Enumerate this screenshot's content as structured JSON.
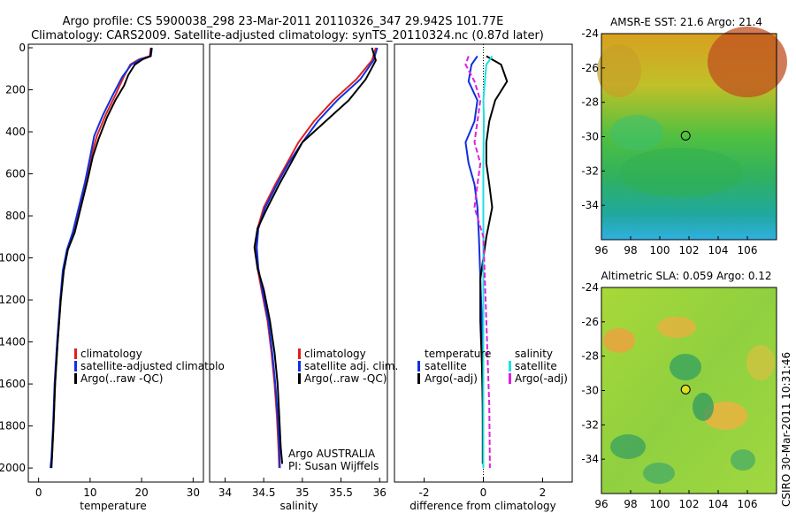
{
  "header": {
    "line1": "Argo profile: CS 5900038_298 23-Mar-2011 20110326_347 29.942S 101.77E",
    "line2": "Climatology: CARS2009. Satellite-adjusted climatology: synTS_20110324.nc (0.87d later)"
  },
  "colors": {
    "climatology": "#e02020",
    "satellite": "#1030e0",
    "argo": "#000000",
    "salt_sat": "#20e0e0",
    "salt_argo": "#e020e0"
  },
  "depth_axis": {
    "ylim": [
      0,
      2050
    ],
    "ticks": [
      0,
      200,
      400,
      600,
      800,
      1000,
      1200,
      1400,
      1600,
      1800,
      2000
    ]
  },
  "chart_data": [
    {
      "type": "line",
      "title": "",
      "xlabel": "temperature",
      "ylabel": "",
      "xlim": [
        -2,
        32
      ],
      "xticks": [
        0,
        10,
        20,
        30
      ],
      "series": [
        {
          "name": "climatology",
          "key": "climatology",
          "x": [
            21.8,
            21.6,
            19.5,
            17.8,
            16.5,
            15.0,
            13.0,
            11.3,
            10.2,
            9.2,
            8.0,
            6.8,
            5.6,
            4.8,
            4.3,
            3.7,
            3.2,
            2.9,
            2.6,
            2.4
          ],
          "y": [
            0,
            40,
            55,
            80,
            140,
            220,
            320,
            420,
            520,
            640,
            760,
            880,
            960,
            1060,
            1200,
            1400,
            1600,
            1800,
            1950,
            2000
          ]
        },
        {
          "name": "satellite-adjusted climatology",
          "key": "satellite",
          "x": [
            22.0,
            21.8,
            19.8,
            18.0,
            16.2,
            14.5,
            12.5,
            10.8,
            10.0,
            9.0,
            7.8,
            6.6,
            5.5,
            4.7,
            4.2,
            3.6,
            3.1,
            2.8,
            2.5,
            2.3
          ],
          "y": [
            0,
            40,
            55,
            80,
            140,
            220,
            320,
            420,
            520,
            640,
            760,
            880,
            960,
            1060,
            1200,
            1400,
            1600,
            1800,
            1950,
            2000
          ]
        },
        {
          "name": "Argo(..raw -QC)",
          "key": "argo",
          "x": [
            21.9,
            21.7,
            20.2,
            18.7,
            17.4,
            16.6,
            14.9,
            13.3,
            11.7,
            10.5,
            9.5,
            8.2,
            7.0,
            5.7,
            4.9,
            4.3,
            3.7,
            3.2,
            2.9,
            2.5
          ],
          "y": [
            0,
            40,
            55,
            80,
            130,
            180,
            250,
            330,
            430,
            520,
            630,
            760,
            880,
            960,
            1060,
            1200,
            1400,
            1600,
            1800,
            2000
          ]
        }
      ],
      "legend": {
        "position": "center-right",
        "entries": [
          "climatology",
          "satellite-adjusted climatolo",
          "Argo(..raw -QC)"
        ]
      }
    },
    {
      "type": "line",
      "title": "",
      "xlabel": "salinity",
      "ylabel": "",
      "xlim": [
        33.8,
        36.1
      ],
      "xticks": [
        34,
        34.5,
        35,
        35.5,
        36
      ],
      "series": [
        {
          "name": "climatology",
          "key": "climatology",
          "x": [
            35.95,
            35.9,
            35.7,
            35.4,
            35.15,
            34.95,
            34.8,
            34.65,
            34.5,
            34.42,
            34.4,
            34.42,
            34.47,
            34.55,
            34.6,
            34.64,
            34.67,
            34.69,
            34.7
          ],
          "y": [
            0,
            60,
            150,
            250,
            350,
            450,
            550,
            650,
            760,
            860,
            950,
            1050,
            1150,
            1300,
            1450,
            1600,
            1750,
            1900,
            2000
          ]
        },
        {
          "name": "satellite adj. clim.",
          "key": "satellite",
          "x": [
            35.97,
            35.92,
            35.75,
            35.45,
            35.2,
            35.0,
            34.82,
            34.67,
            34.52,
            34.43,
            34.41,
            34.43,
            34.48,
            34.56,
            34.61,
            34.65,
            34.68,
            34.7,
            34.71
          ],
          "y": [
            0,
            60,
            150,
            250,
            350,
            450,
            550,
            650,
            760,
            860,
            950,
            1050,
            1150,
            1300,
            1450,
            1600,
            1750,
            1900,
            2000
          ]
        },
        {
          "name": "Argo(..raw -QC)",
          "key": "argo",
          "x": [
            35.9,
            35.95,
            35.82,
            35.6,
            35.3,
            35.0,
            34.85,
            34.7,
            34.55,
            34.42,
            34.38,
            34.42,
            34.5,
            34.58,
            34.64,
            34.68,
            34.7,
            34.72,
            34.74
          ],
          "y": [
            0,
            60,
            150,
            250,
            350,
            450,
            550,
            650,
            760,
            860,
            950,
            1050,
            1150,
            1300,
            1450,
            1600,
            1750,
            1900,
            1980
          ]
        }
      ],
      "legend": {
        "position": "center-right",
        "entries": [
          "climatology",
          "satellite adj. clim.",
          "Argo(..raw -QC)"
        ]
      },
      "annotation": [
        "Argo AUSTRALIA",
        "PI: Susan Wijffels"
      ]
    },
    {
      "type": "line",
      "title": "",
      "xlabel": "difference from climatology",
      "ylabel": "",
      "xlim": [
        -3,
        3
      ],
      "xticks": [
        -2,
        0,
        2
      ],
      "series": [
        {
          "name": "temperature satellite",
          "key": "satellite",
          "x": [
            -0.2,
            -0.4,
            -0.5,
            -0.2,
            -0.3,
            -0.6,
            -0.5,
            -0.3,
            -0.2,
            -0.15,
            -0.1,
            -0.05,
            -0.03,
            -0.02,
            0
          ],
          "y": [
            40,
            80,
            160,
            250,
            350,
            450,
            550,
            650,
            760,
            900,
            1100,
            1300,
            1500,
            1700,
            2000
          ]
        },
        {
          "name": "temperature Argo(-adj)",
          "key": "argo",
          "x": [
            0.1,
            0.6,
            0.8,
            0.4,
            0.2,
            0.1,
            0.1,
            0.2,
            0.3,
            0.1,
            -0.1,
            -0.1,
            -0.05,
            -0.02,
            -0.02
          ],
          "y": [
            40,
            80,
            160,
            250,
            350,
            450,
            550,
            650,
            760,
            900,
            1100,
            1300,
            1500,
            1700,
            1980
          ]
        },
        {
          "name": "salinity satellite",
          "key": "salt_sat",
          "x": [
            0.3,
            0.1,
            0.05,
            0.0,
            0.02,
            0.01,
            0.0,
            0.0,
            0.0,
            0.0,
            0.0,
            0.0,
            0.0,
            0.0,
            0.0
          ],
          "y": [
            40,
            80,
            160,
            250,
            350,
            450,
            550,
            650,
            760,
            900,
            1100,
            1300,
            1500,
            1700,
            2000
          ]
        },
        {
          "name": "salinity Argo(-adj)",
          "key": "salt_argo",
          "x": [
            -0.5,
            -0.6,
            -0.3,
            -0.1,
            -0.2,
            -0.3,
            -0.1,
            -0.2,
            -0.3,
            0.0,
            0.05,
            0.1,
            0.15,
            0.2,
            0.22
          ],
          "y": [
            40,
            80,
            160,
            250,
            350,
            450,
            550,
            650,
            760,
            900,
            1100,
            1300,
            1500,
            1700,
            2000
          ]
        }
      ],
      "legend": {
        "position": "center",
        "group_titles": [
          "temperature",
          "salinity"
        ],
        "entries": [
          "satellite",
          "Argo(-adj)",
          "satellite",
          "Argo(-adj)"
        ]
      }
    },
    {
      "type": "heatmap",
      "title": "AMSR-E SST: 21.6 Argo: 21.4",
      "xlim": [
        96,
        108
      ],
      "ylim": [
        -36,
        -24
      ],
      "xticks": [
        96,
        98,
        100,
        102,
        104,
        106
      ],
      "yticks": [
        -24,
        -26,
        -28,
        -30,
        -32,
        -34
      ],
      "marker": {
        "lon": 101.77,
        "lat": -29.942
      }
    },
    {
      "type": "heatmap",
      "title": "Altimetric SLA: 0.059 Argo: 0.12",
      "xlim": [
        96,
        108
      ],
      "ylim": [
        -36,
        -24
      ],
      "xticks": [
        96,
        98,
        100,
        102,
        104,
        106
      ],
      "yticks": [
        -24,
        -26,
        -28,
        -30,
        -32,
        -34
      ],
      "marker": {
        "lon": 101.77,
        "lat": -29.942
      }
    }
  ],
  "footer": {
    "stamp": "CSIRO 30-Mar-2011 10:31:46"
  }
}
